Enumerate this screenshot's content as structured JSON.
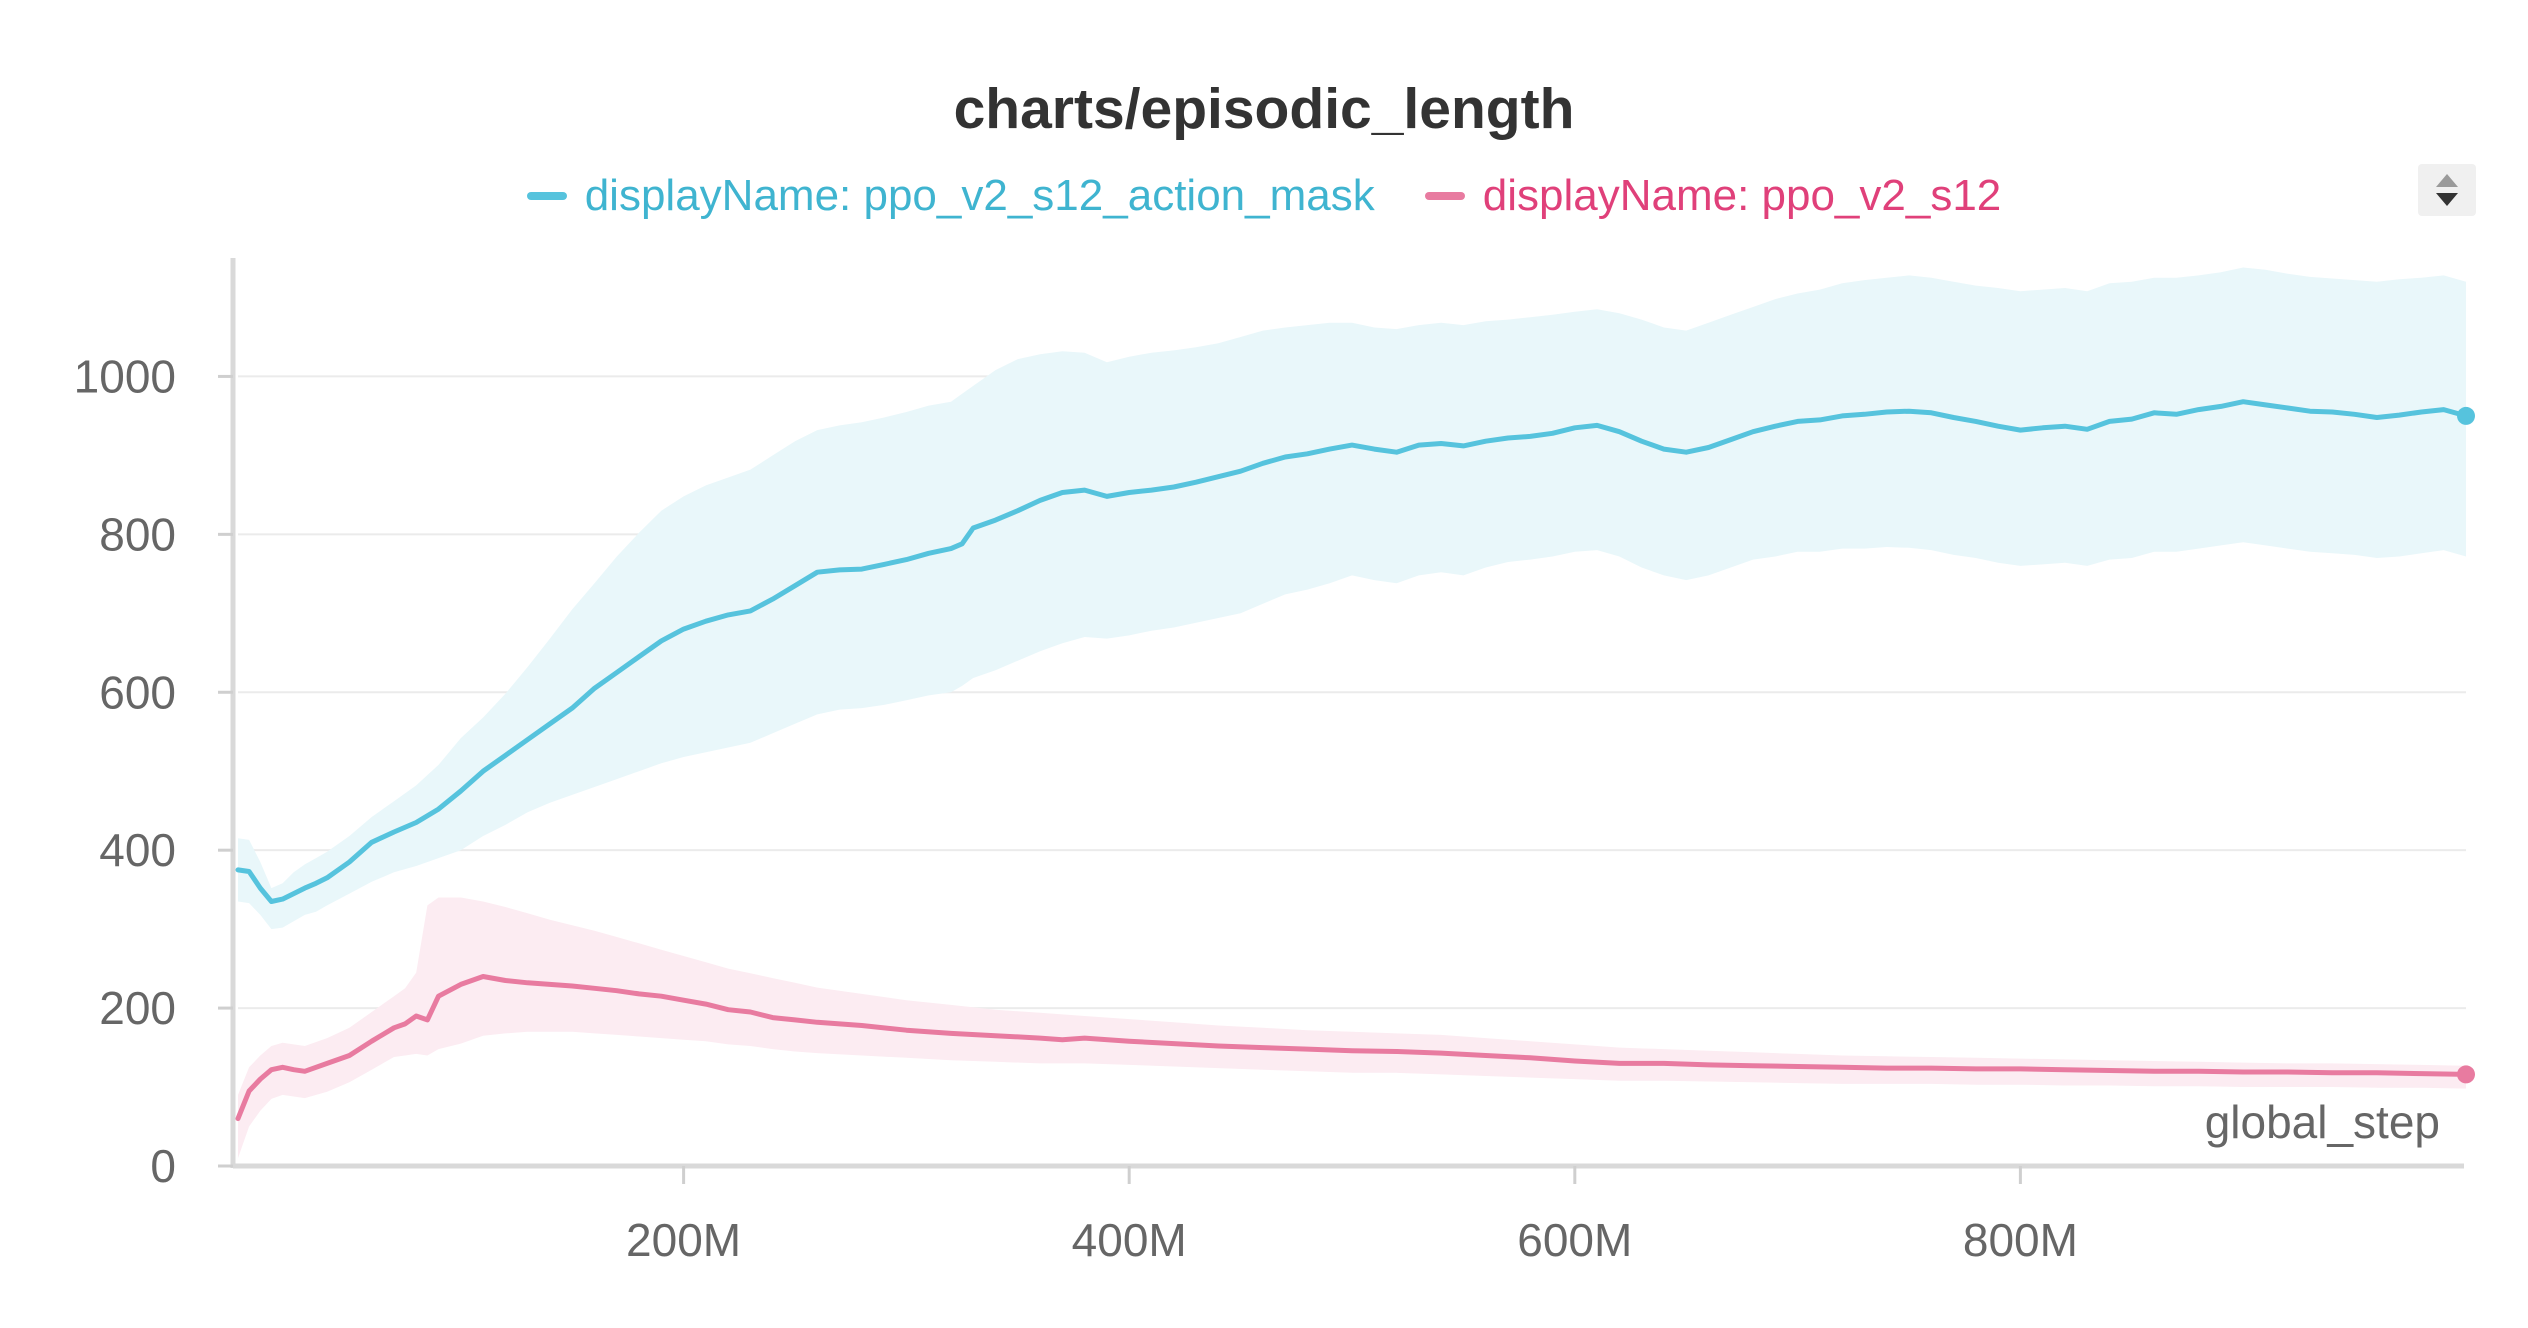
{
  "chart_data": {
    "type": "line",
    "title": "charts/episodic_length",
    "xlabel": "global_step",
    "ylabel": "",
    "xlim": [
      0,
      1000000000
    ],
    "ylim": [
      0,
      1150
    ],
    "y_ticks": [
      0,
      200,
      400,
      600,
      800,
      1000
    ],
    "y_tick_labels": [
      "0",
      "200",
      "400",
      "600",
      "800",
      "1000"
    ],
    "x_ticks": [
      200000000,
      400000000,
      600000000,
      800000000
    ],
    "x_tick_labels": [
      "200M",
      "400M",
      "600M",
      "800M"
    ],
    "grid": true,
    "legend_position": "top-center",
    "series": [
      {
        "name": "displayName: ppo_v2_s12_action_mask",
        "color": "#56c3dd",
        "band_color": "#e9f7fa",
        "x": [
          0,
          5000000,
          10000000,
          15000000,
          20000000,
          25000000,
          30000000,
          35000000,
          40000000,
          50000000,
          60000000,
          70000000,
          80000000,
          90000000,
          100000000,
          110000000,
          120000000,
          130000000,
          140000000,
          150000000,
          160000000,
          170000000,
          180000000,
          190000000,
          200000000,
          210000000,
          220000000,
          230000000,
          240000000,
          250000000,
          260000000,
          270000000,
          280000000,
          290000000,
          300000000,
          310000000,
          320000000,
          325000000,
          330000000,
          340000000,
          350000000,
          360000000,
          370000000,
          380000000,
          390000000,
          400000000,
          410000000,
          420000000,
          430000000,
          440000000,
          450000000,
          460000000,
          470000000,
          480000000,
          490000000,
          500000000,
          510000000,
          520000000,
          530000000,
          540000000,
          550000000,
          560000000,
          570000000,
          580000000,
          590000000,
          600000000,
          610000000,
          620000000,
          630000000,
          640000000,
          650000000,
          660000000,
          670000000,
          680000000,
          690000000,
          700000000,
          710000000,
          720000000,
          730000000,
          740000000,
          750000000,
          760000000,
          770000000,
          780000000,
          790000000,
          800000000,
          810000000,
          820000000,
          830000000,
          840000000,
          850000000,
          860000000,
          870000000,
          880000000,
          890000000,
          900000000,
          910000000,
          920000000,
          930000000,
          940000000,
          950000000,
          960000000,
          970000000,
          980000000,
          990000000,
          1000000000
        ],
        "values": [
          375,
          373,
          352,
          335,
          338,
          345,
          352,
          358,
          365,
          385,
          410,
          423,
          435,
          452,
          475,
          500,
          520,
          540,
          560,
          580,
          605,
          625,
          645,
          665,
          680,
          690,
          698,
          703,
          718,
          735,
          752,
          755,
          756,
          762,
          768,
          776,
          782,
          788,
          808,
          818,
          830,
          843,
          853,
          856,
          848,
          853,
          856,
          860,
          866,
          873,
          880,
          890,
          898,
          902,
          908,
          913,
          908,
          904,
          913,
          915,
          912,
          918,
          922,
          924,
          928,
          935,
          938,
          930,
          918,
          908,
          904,
          910,
          920,
          930,
          937,
          943,
          945,
          950,
          952,
          955,
          956,
          954,
          948,
          943,
          937,
          932,
          935,
          937,
          933,
          943,
          946,
          954,
          952,
          958,
          962,
          968,
          964,
          960,
          956,
          955,
          952,
          948,
          951,
          955,
          958,
          950
        ],
        "upper": [
          415,
          413,
          385,
          352,
          358,
          372,
          382,
          390,
          398,
          418,
          442,
          462,
          482,
          508,
          542,
          568,
          598,
          632,
          668,
          705,
          738,
          772,
          802,
          830,
          848,
          862,
          872,
          882,
          900,
          918,
          932,
          938,
          942,
          948,
          955,
          963,
          968,
          978,
          988,
          1008,
          1022,
          1028,
          1032,
          1030,
          1018,
          1025,
          1030,
          1033,
          1037,
          1042,
          1050,
          1058,
          1062,
          1065,
          1068,
          1068,
          1062,
          1060,
          1065,
          1068,
          1065,
          1070,
          1072,
          1075,
          1078,
          1082,
          1085,
          1080,
          1072,
          1062,
          1058,
          1068,
          1078,
          1088,
          1098,
          1105,
          1110,
          1118,
          1122,
          1125,
          1128,
          1125,
          1120,
          1115,
          1112,
          1108,
          1110,
          1112,
          1108,
          1118,
          1120,
          1125,
          1125,
          1128,
          1132,
          1138,
          1135,
          1130,
          1126,
          1124,
          1122,
          1120,
          1123,
          1125,
          1128,
          1120
        ],
        "lower": [
          335,
          333,
          318,
          300,
          302,
          310,
          318,
          322,
          330,
          345,
          360,
          372,
          380,
          390,
          400,
          418,
          432,
          448,
          460,
          470,
          480,
          490,
          500,
          510,
          518,
          524,
          530,
          536,
          548,
          560,
          572,
          578,
          580,
          584,
          590,
          596,
          600,
          608,
          618,
          628,
          640,
          652,
          662,
          670,
          668,
          672,
          678,
          682,
          688,
          694,
          700,
          712,
          724,
          730,
          738,
          748,
          742,
          738,
          748,
          752,
          748,
          758,
          765,
          768,
          772,
          778,
          780,
          772,
          758,
          748,
          742,
          748,
          758,
          768,
          772,
          778,
          778,
          782,
          782,
          784,
          783,
          780,
          774,
          770,
          764,
          760,
          762,
          764,
          760,
          768,
          770,
          778,
          778,
          782,
          786,
          790,
          786,
          782,
          778,
          776,
          774,
          770,
          772,
          776,
          780,
          772
        ]
      },
      {
        "name": "displayName: ppo_v2_s12",
        "color": "#e87ba0",
        "band_color": "#fcecf2",
        "x": [
          0,
          5000000,
          10000000,
          15000000,
          20000000,
          25000000,
          30000000,
          40000000,
          50000000,
          60000000,
          70000000,
          75000000,
          80000000,
          85000000,
          90000000,
          100000000,
          110000000,
          120000000,
          130000000,
          140000000,
          150000000,
          160000000,
          170000000,
          180000000,
          190000000,
          200000000,
          210000000,
          220000000,
          230000000,
          240000000,
          250000000,
          260000000,
          280000000,
          300000000,
          320000000,
          340000000,
          360000000,
          370000000,
          380000000,
          400000000,
          420000000,
          440000000,
          460000000,
          480000000,
          500000000,
          520000000,
          540000000,
          560000000,
          580000000,
          600000000,
          620000000,
          640000000,
          660000000,
          680000000,
          700000000,
          720000000,
          740000000,
          760000000,
          780000000,
          800000000,
          820000000,
          840000000,
          860000000,
          880000000,
          900000000,
          920000000,
          940000000,
          960000000,
          980000000,
          1000000000
        ],
        "values": [
          60,
          95,
          110,
          122,
          125,
          122,
          120,
          130,
          140,
          158,
          175,
          180,
          190,
          185,
          215,
          230,
          240,
          235,
          232,
          230,
          228,
          225,
          222,
          218,
          215,
          210,
          205,
          198,
          195,
          188,
          185,
          182,
          178,
          172,
          168,
          165,
          162,
          160,
          162,
          158,
          155,
          152,
          150,
          148,
          146,
          145,
          143,
          140,
          137,
          133,
          130,
          130,
          128,
          127,
          126,
          125,
          124,
          124,
          123,
          123,
          122,
          121,
          120,
          120,
          119,
          119,
          118,
          118,
          117,
          116
        ],
        "upper": [
          90,
          125,
          140,
          152,
          156,
          154,
          152,
          162,
          175,
          195,
          215,
          225,
          245,
          330,
          340,
          340,
          335,
          328,
          320,
          312,
          305,
          298,
          290,
          282,
          274,
          266,
          258,
          250,
          244,
          238,
          232,
          226,
          218,
          210,
          204,
          198,
          194,
          192,
          190,
          186,
          182,
          178,
          175,
          172,
          170,
          168,
          166,
          162,
          158,
          154,
          150,
          148,
          146,
          144,
          142,
          140,
          139,
          138,
          137,
          136,
          135,
          134,
          133,
          132,
          131,
          130,
          130,
          129,
          128,
          127
        ],
        "lower": [
          10,
          50,
          70,
          85,
          90,
          88,
          86,
          94,
          106,
          122,
          138,
          140,
          142,
          140,
          148,
          155,
          165,
          168,
          170,
          170,
          170,
          168,
          166,
          164,
          162,
          160,
          158,
          154,
          152,
          148,
          145,
          143,
          140,
          137,
          134,
          132,
          130,
          130,
          130,
          128,
          126,
          124,
          122,
          120,
          118,
          118,
          116,
          114,
          112,
          110,
          108,
          108,
          107,
          106,
          105,
          104,
          104,
          104,
          103,
          103,
          102,
          102,
          101,
          101,
          100,
          100,
          100,
          99,
          99,
          98
        ]
      }
    ]
  }
}
